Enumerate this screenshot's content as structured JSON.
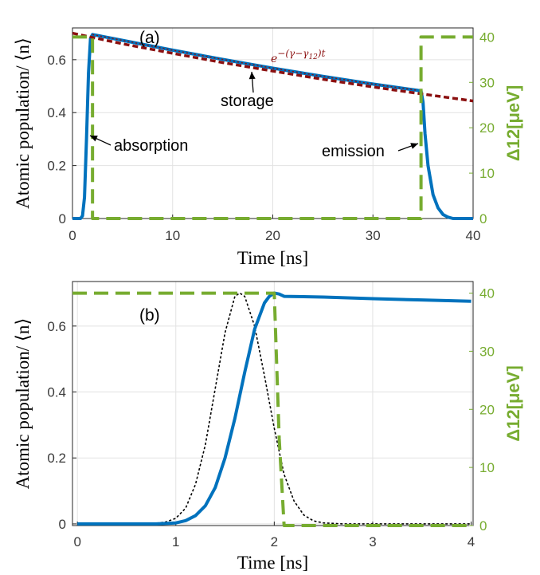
{
  "chart_data": [
    {
      "type": "line",
      "panel_label": "(a)",
      "xlabel": "Time [ns]",
      "ylabel": "Atomic population/ ⟨n⟩",
      "ylabel_right": "Δ12[μeV]",
      "xlim": [
        0,
        40
      ],
      "ylim": [
        0,
        0.72
      ],
      "ylim_right": [
        0,
        42
      ],
      "xticks": [
        0,
        10,
        20,
        30,
        40
      ],
      "yticks": [
        0,
        0.2,
        0.4,
        0.6
      ],
      "yticks_right": [
        0,
        10,
        20,
        30,
        40
      ],
      "grid": true,
      "series": [
        {
          "role": "population",
          "color": "#0072bd",
          "style": "solid",
          "x": [
            0,
            0.8,
            1.0,
            1.2,
            1.4,
            1.6,
            1.8,
            2.0,
            5,
            10,
            15,
            20,
            25,
            30,
            34.5,
            34.8,
            35.0,
            35.2,
            35.5,
            36,
            36.5,
            37,
            37.5,
            38,
            39,
            40
          ],
          "y": [
            0,
            0,
            0.01,
            0.08,
            0.3,
            0.55,
            0.68,
            0.695,
            0.673,
            0.636,
            0.601,
            0.568,
            0.537,
            0.508,
            0.484,
            0.483,
            0.44,
            0.32,
            0.2,
            0.09,
            0.04,
            0.015,
            0.005,
            0,
            0,
            0
          ]
        },
        {
          "role": "decay-fit",
          "color": "#8b1010",
          "style": "dashed",
          "x": [
            0,
            5,
            10,
            15,
            20,
            25,
            30,
            35,
            40
          ],
          "y": [
            0.7,
            0.66,
            0.624,
            0.589,
            0.557,
            0.526,
            0.497,
            0.47,
            0.444
          ]
        },
        {
          "role": "detuning",
          "axis": "right",
          "color": "#77ac30",
          "style": "dashed",
          "x": [
            0,
            2.0,
            2.0,
            34.8,
            34.8,
            40
          ],
          "y": [
            40,
            40,
            0,
            0,
            40,
            40
          ]
        }
      ],
      "annotations": [
        {
          "text": "absorption",
          "x": 2.2,
          "y": 0.32
        },
        {
          "text": "storage",
          "x": 18,
          "y": 0.565
        },
        {
          "text": "emission",
          "x": 34.8,
          "y": 0.305
        },
        {
          "text": "e^{−(γ−γ12)t}",
          "x": 27,
          "y": 0.55
        }
      ]
    },
    {
      "type": "line",
      "panel_label": "(b)",
      "xlabel": "Time [ns]",
      "ylabel": "Atomic population/ ⟨n⟩",
      "ylabel_right": "Δ12[μeV]",
      "xlim": [
        -0.05,
        4.02
      ],
      "ylim": [
        -0.005,
        0.735
      ],
      "ylim_right": [
        0,
        42
      ],
      "xticks": [
        0,
        1,
        2,
        3,
        4
      ],
      "yticks": [
        0,
        0.2,
        0.4,
        0.6
      ],
      "yticks_right": [
        0,
        10,
        20,
        30,
        40
      ],
      "grid": true,
      "series": [
        {
          "role": "population",
          "color": "#0072bd",
          "style": "solid",
          "x": [
            0,
            0.8,
            1.0,
            1.1,
            1.2,
            1.3,
            1.4,
            1.5,
            1.6,
            1.7,
            1.8,
            1.9,
            1.95,
            2.0,
            2.05,
            2.1,
            2.5,
            3.0,
            3.5,
            4.0
          ],
          "y": [
            0,
            0,
            0.003,
            0.01,
            0.025,
            0.055,
            0.11,
            0.2,
            0.32,
            0.46,
            0.59,
            0.67,
            0.69,
            0.7,
            0.697,
            0.69,
            0.688,
            0.683,
            0.679,
            0.675
          ]
        },
        {
          "role": "input-pulse",
          "color": "#000000",
          "style": "dotted",
          "x": [
            0,
            0.6,
            0.8,
            0.9,
            1.0,
            1.1,
            1.2,
            1.3,
            1.4,
            1.5,
            1.6,
            1.65,
            1.7,
            1.8,
            1.9,
            2.0,
            2.1,
            2.2,
            2.3,
            2.4,
            2.5,
            2.7,
            4.0
          ],
          "y": [
            0,
            0,
            0.002,
            0.006,
            0.017,
            0.048,
            0.12,
            0.24,
            0.41,
            0.58,
            0.69,
            0.7,
            0.69,
            0.6,
            0.45,
            0.29,
            0.15,
            0.07,
            0.027,
            0.009,
            0.003,
            0,
            0
          ]
        },
        {
          "role": "detuning",
          "axis": "right",
          "color": "#77ac30",
          "style": "dashed",
          "x": [
            -0.05,
            2.0,
            2.05,
            2.1,
            4.0
          ],
          "y": [
            40,
            40,
            15,
            0,
            0
          ]
        }
      ],
      "annotations": []
    }
  ]
}
